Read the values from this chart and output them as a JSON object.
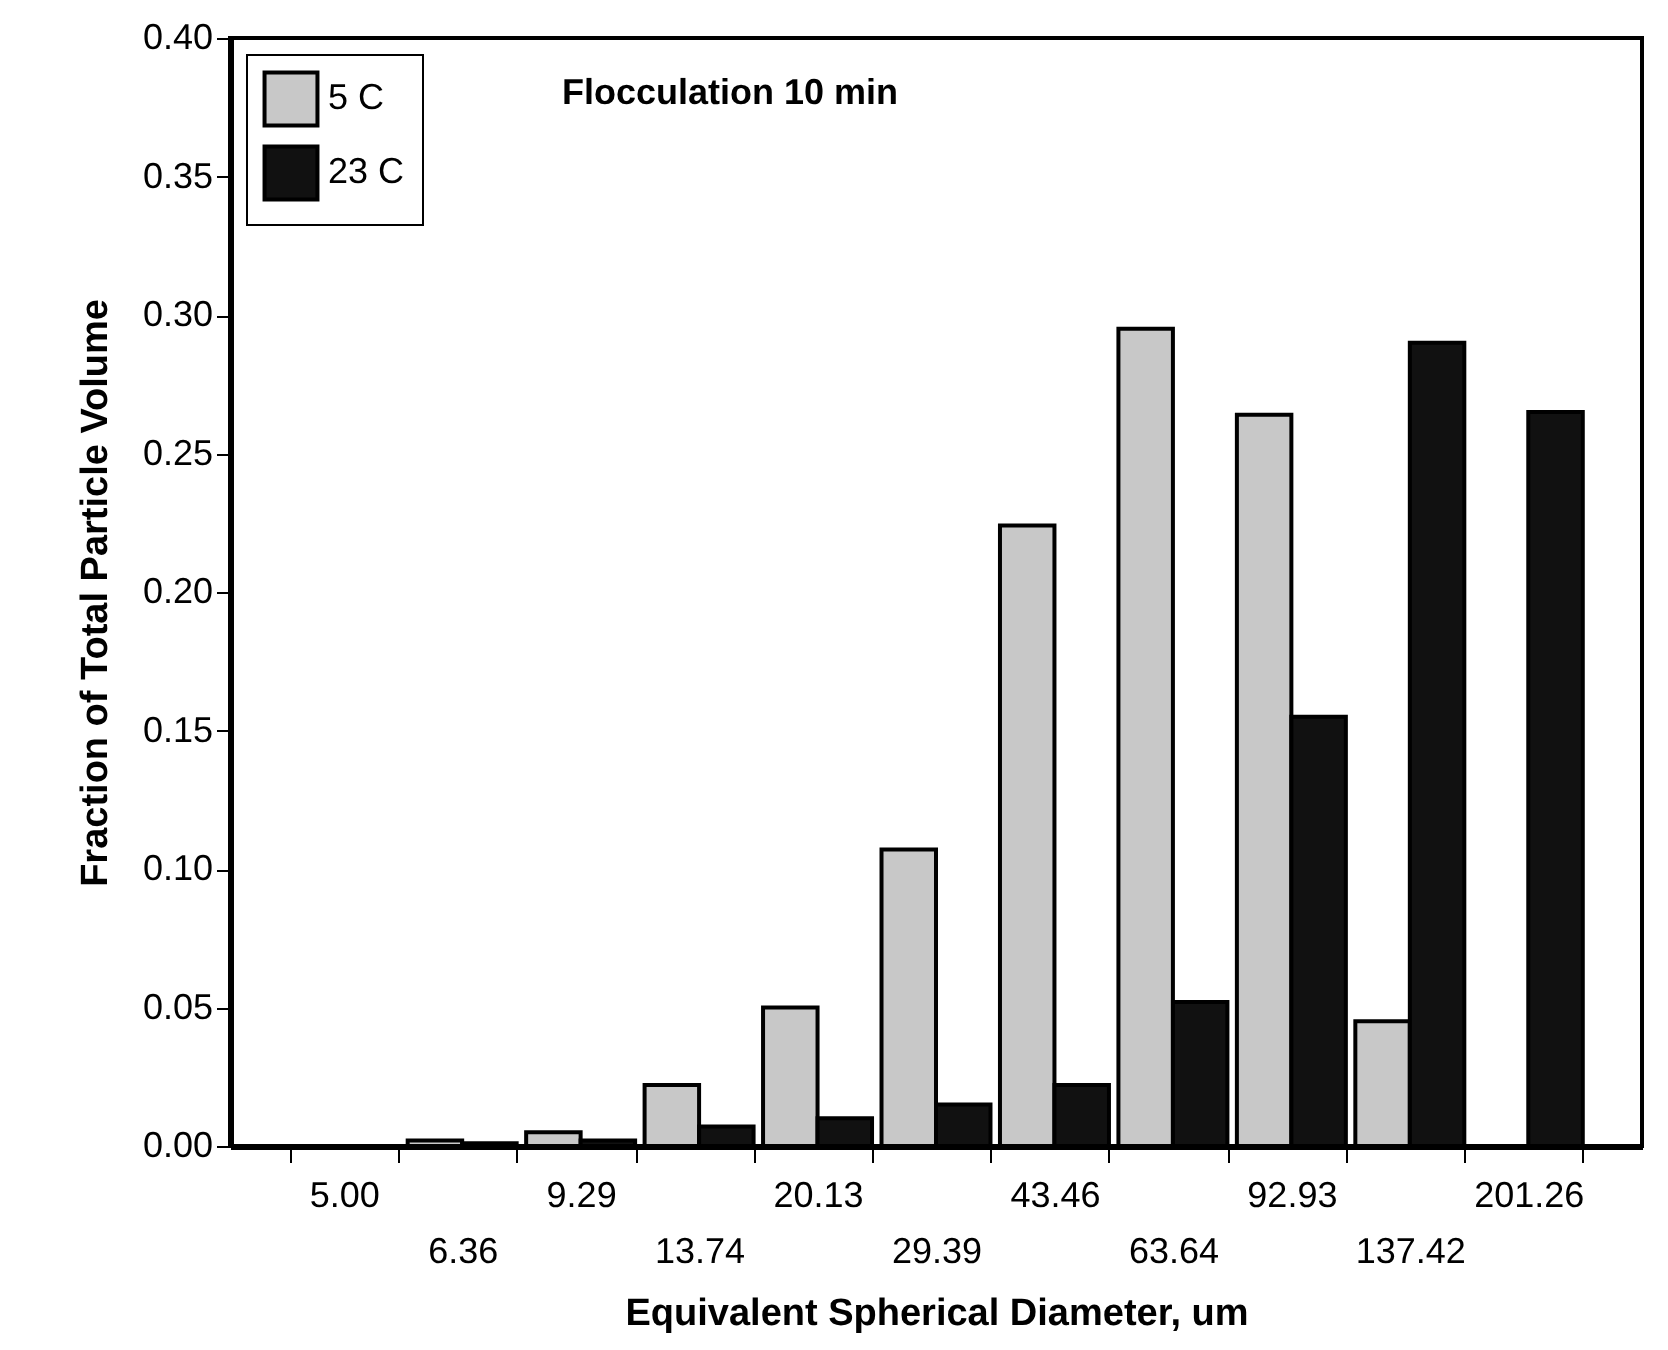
{
  "chart_data": {
    "type": "bar",
    "annotations": [
      "Flocculation 10 min"
    ],
    "xlabel": "Equivalent Spherical Diameter, um",
    "ylabel": "Fraction of Total Particle Volume",
    "categories": [
      "5.00",
      "6.36",
      "9.29",
      "13.74",
      "20.13",
      "29.39",
      "43.46",
      "63.64",
      "92.93",
      "137.42",
      "201.26"
    ],
    "series": [
      {
        "name": "5 C",
        "color": "#c8c8c8",
        "values": [
          null,
          0.002,
          0.005,
          0.022,
          0.05,
          0.107,
          0.224,
          0.295,
          0.264,
          0.045,
          null
        ]
      },
      {
        "name": "23 C",
        "color": "#111111",
        "values": [
          null,
          0.001,
          0.002,
          0.007,
          0.01,
          0.015,
          0.022,
          0.052,
          0.155,
          0.29,
          0.265
        ]
      }
    ],
    "ylim": [
      0,
      0.4
    ],
    "yticks": [
      {
        "value": 0,
        "label": "0.00"
      },
      {
        "value": 0.05,
        "label": "0.05"
      },
      {
        "value": 0.1,
        "label": "0.10"
      },
      {
        "value": 0.15,
        "label": "0.15"
      },
      {
        "value": 0.2,
        "label": "0.20"
      },
      {
        "value": 0.25,
        "label": "0.25"
      },
      {
        "value": 0.3,
        "label": "0.30"
      },
      {
        "value": 0.35,
        "label": "0.35"
      },
      {
        "value": 0.4,
        "label": "0.40"
      }
    ],
    "legend": "top left",
    "grid": false
  }
}
